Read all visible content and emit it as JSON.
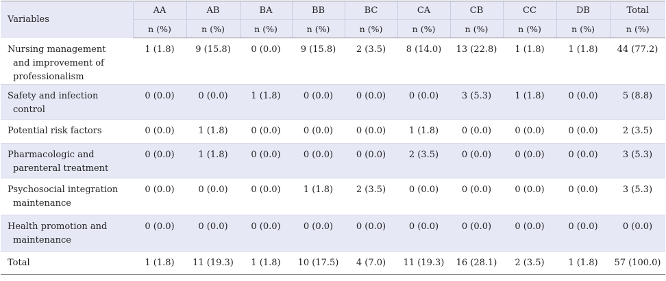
{
  "columns": {
    "variable_header": "Variables",
    "codes": [
      "AA",
      "AB",
      "BA",
      "BB",
      "BC",
      "CA",
      "CB",
      "CC",
      "DB",
      "Total"
    ],
    "subheader": "n (%)"
  },
  "rows": [
    {
      "label_lines": [
        "Nursing management",
        "and improvement of",
        "professionalism"
      ],
      "values": [
        "1 (1.8)",
        "9 (15.8)",
        "0 (0.0)",
        "9 (15.8)",
        "2 (3.5)",
        "8 (14.0)",
        "13 (22.8)",
        "1 (1.8)",
        "1 (1.8)",
        "44 (77.2)"
      ]
    },
    {
      "label_lines": [
        "Safety and infection",
        "control"
      ],
      "values": [
        "0 (0.0)",
        "0 (0.0)",
        "1 (1.8)",
        "0 (0.0)",
        "0 (0.0)",
        "0 (0.0)",
        "3 (5.3)",
        "1 (1.8)",
        "0 (0.0)",
        "5 (8.8)"
      ]
    },
    {
      "label_lines": [
        "Potential risk factors"
      ],
      "values": [
        "0 (0.0)",
        "1 (1.8)",
        "0 (0.0)",
        "0 (0.0)",
        "0 (0.0)",
        "1 (1.8)",
        "0 (0.0)",
        "0 (0.0)",
        "0 (0.0)",
        "2 (3.5)"
      ]
    },
    {
      "label_lines": [
        "Pharmacologic and",
        "parenteral treatment"
      ],
      "values": [
        "0 (0.0)",
        "1 (1.8)",
        "0 (0.0)",
        "0 (0.0)",
        "0 (0.0)",
        "2 (3.5)",
        "0 (0.0)",
        "0 (0.0)",
        "0 (0.0)",
        "3 (5.3)"
      ]
    },
    {
      "label_lines": [
        "Psychosocial integration",
        "maintenance"
      ],
      "values": [
        "0 (0.0)",
        "0 (0.0)",
        "0 (0.0)",
        "1 (1.8)",
        "2 (3.5)",
        "0 (0.0)",
        "0 (0.0)",
        "0 (0.0)",
        "0 (0.0)",
        "3 (5.3)"
      ]
    },
    {
      "label_lines": [
        "Health promotion and",
        "maintenance"
      ],
      "values": [
        "0 (0.0)",
        "0 (0.0)",
        "0 (0.0)",
        "0 (0.0)",
        "0 (0.0)",
        "0 (0.0)",
        "0 (0.0)",
        "0 (0.0)",
        "0 (0.0)",
        "0 (0.0)"
      ]
    },
    {
      "label_lines": [
        "Total"
      ],
      "values": [
        "1 (1.8)",
        "11 (19.3)",
        "1 (1.8)",
        "10 (17.5)",
        "4 (7.0)",
        "11 (19.3)",
        "16 (28.1)",
        "2 (3.5)",
        "1 (1.8)",
        "57 (100.0)"
      ]
    }
  ],
  "colors": {
    "header_bg": "#e6e8f6",
    "row_shade": "#e6e8f6",
    "rule": "#8a8a8a"
  }
}
